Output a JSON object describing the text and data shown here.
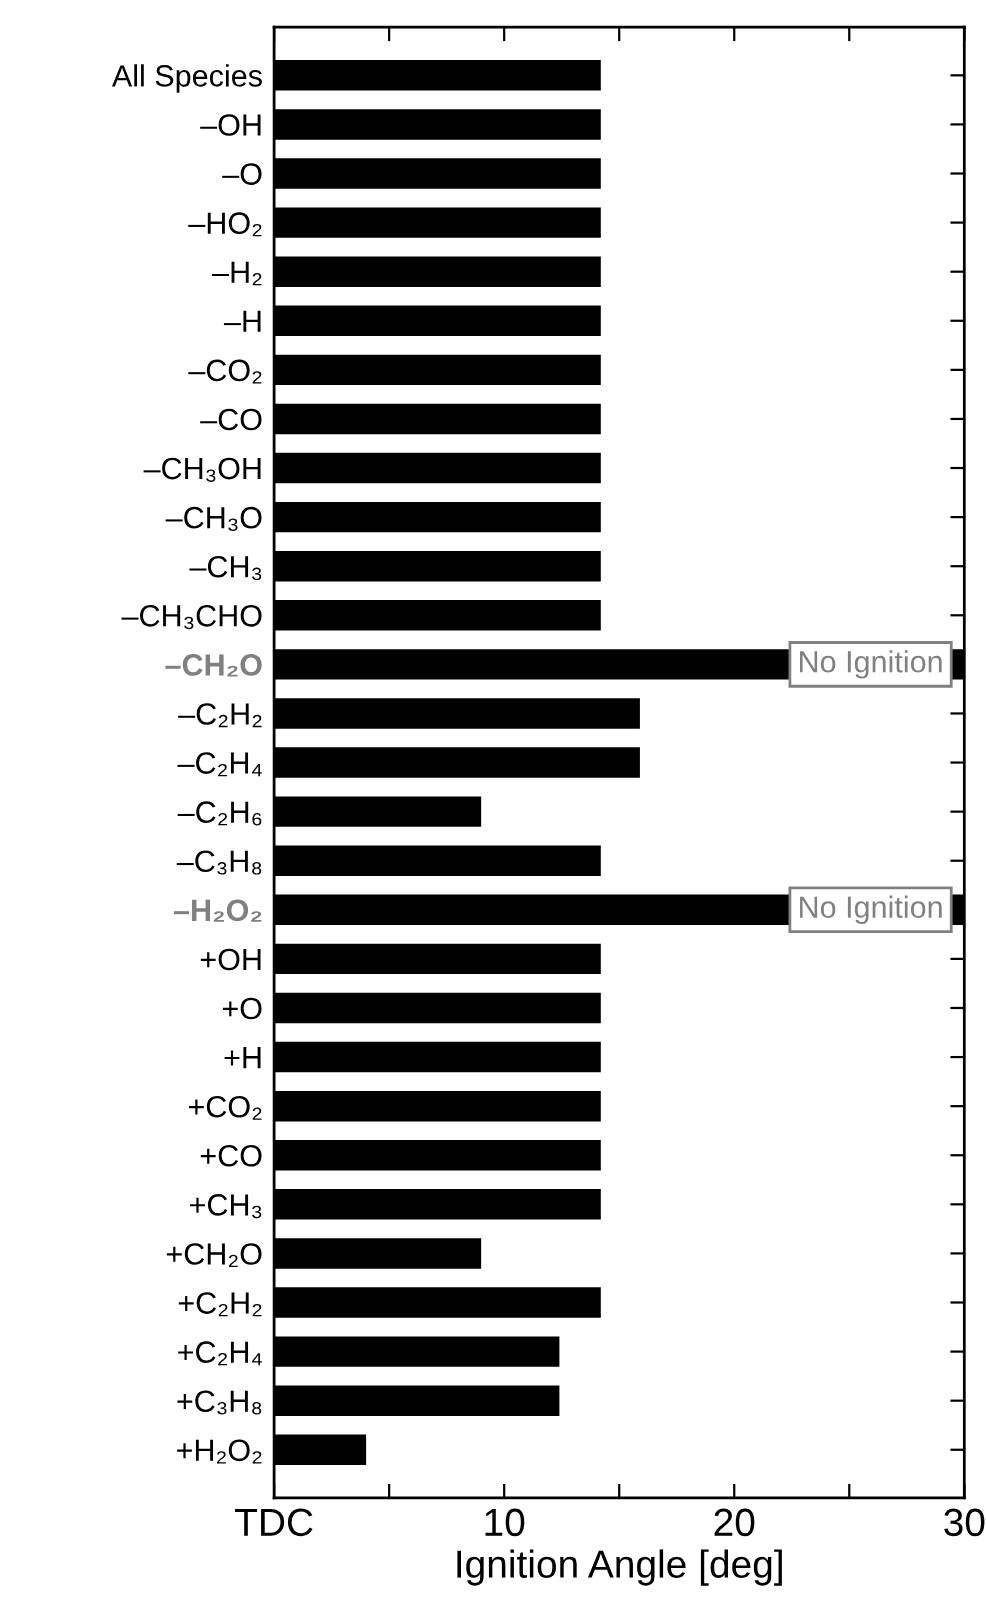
{
  "chart_data": {
    "type": "bar",
    "orientation": "horizontal",
    "xlabel": "Ignition Angle [deg]",
    "categories": [
      "All Species",
      "–OH",
      "–O",
      "–HO₂",
      "–H₂",
      "–H",
      "–CO₂",
      "–CO",
      "–CH₃OH",
      "–CH₃O",
      "–CH₃",
      "–CH₃CHO",
      "–CH₂O",
      "–C₂H₂",
      "–C₂H₄",
      "–C₂H₆",
      "–C₃H₈",
      "–H₂O₂",
      "+OH",
      "+O",
      "+H",
      "+CO₂",
      "+CO",
      "+CH₃",
      "+CH₂O",
      "+C₂H₂",
      "+C₂H₄",
      "+C₃H₈",
      "+H₂O₂"
    ],
    "values": [
      14.2,
      14.2,
      14.2,
      14.2,
      14.2,
      14.2,
      14.2,
      14.2,
      14.2,
      14.2,
      14.2,
      14.2,
      30,
      15.9,
      15.9,
      9.0,
      14.2,
      30,
      14.2,
      14.2,
      14.2,
      14.2,
      14.2,
      14.2,
      9.0,
      14.2,
      12.4,
      12.4,
      4.0
    ],
    "value_labels": [
      null,
      null,
      null,
      null,
      null,
      null,
      null,
      null,
      null,
      null,
      null,
      null,
      "No Ignition",
      null,
      null,
      null,
      null,
      "No Ignition",
      null,
      null,
      null,
      null,
      null,
      null,
      null,
      null,
      null,
      null,
      null
    ],
    "color": "#000000",
    "xlim": [
      0,
      30
    ],
    "xticks": [
      {
        "value": 0,
        "label": "TDC"
      },
      {
        "value": 5,
        "label": null
      },
      10,
      {
        "value": 15,
        "label": null
      },
      20,
      {
        "value": 25,
        "label": null
      },
      30
    ],
    "grid": false,
    "legend": false
  }
}
